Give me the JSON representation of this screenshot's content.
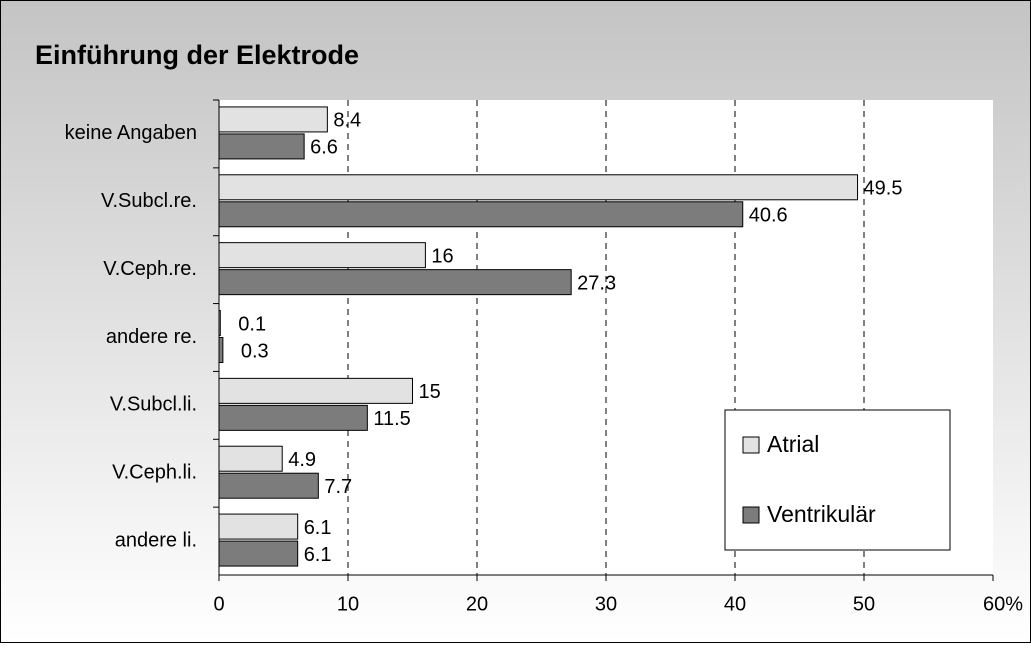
{
  "chart_data": {
    "type": "barh",
    "title": "Einführung der Elektrode",
    "categories": [
      "keine Angaben",
      "V.Subcl.re.",
      "V.Ceph.re.",
      "andere re.",
      "V.Subcl.li.",
      "V.Ceph.li.",
      "andere li."
    ],
    "series": [
      {
        "name": "Atrial",
        "color": "#e2e2e2",
        "values": [
          8.4,
          49.5,
          16,
          0.1,
          15,
          4.9,
          6.1
        ]
      },
      {
        "name": "Ventrikulär",
        "color": "#7c7c7c",
        "values": [
          6.6,
          40.6,
          27.3,
          0.3,
          11.5,
          7.7,
          6.1
        ]
      }
    ],
    "xlim": [
      0,
      60
    ],
    "xticks": [
      0,
      10,
      20,
      30,
      40,
      50,
      {
        "value": 60,
        "label": "60%"
      }
    ],
    "grid": true,
    "legend_position": "lower-right"
  }
}
